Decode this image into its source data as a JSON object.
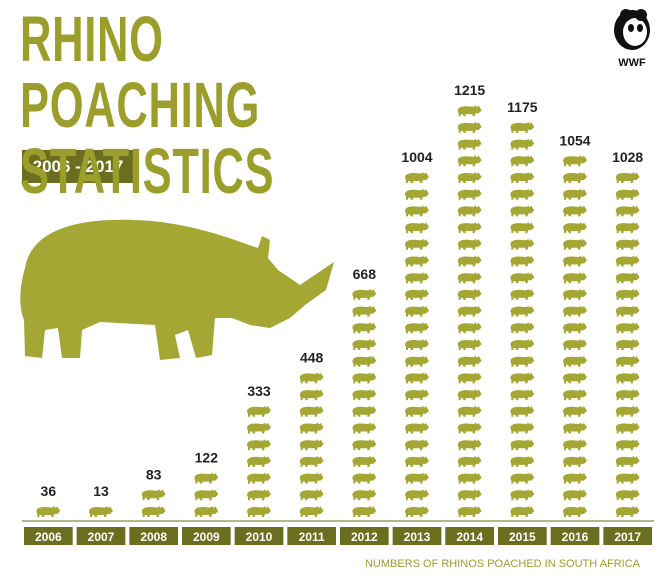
{
  "chart_data": {
    "type": "bar",
    "title": "RHINO POACHING STATISTICS",
    "subtitle": "2006 - 2017",
    "logo": "WWF",
    "footnote": "NUMBERS OF RHINOS POACHED IN SOUTH AFRICA",
    "categories": [
      "2006",
      "2007",
      "2008",
      "2009",
      "2010",
      "2011",
      "2012",
      "2013",
      "2014",
      "2015",
      "2016",
      "2017"
    ],
    "values": [
      36,
      13,
      83,
      122,
      333,
      448,
      668,
      1004,
      1215,
      1175,
      1054,
      1028
    ],
    "color": "#a4a733"
  }
}
